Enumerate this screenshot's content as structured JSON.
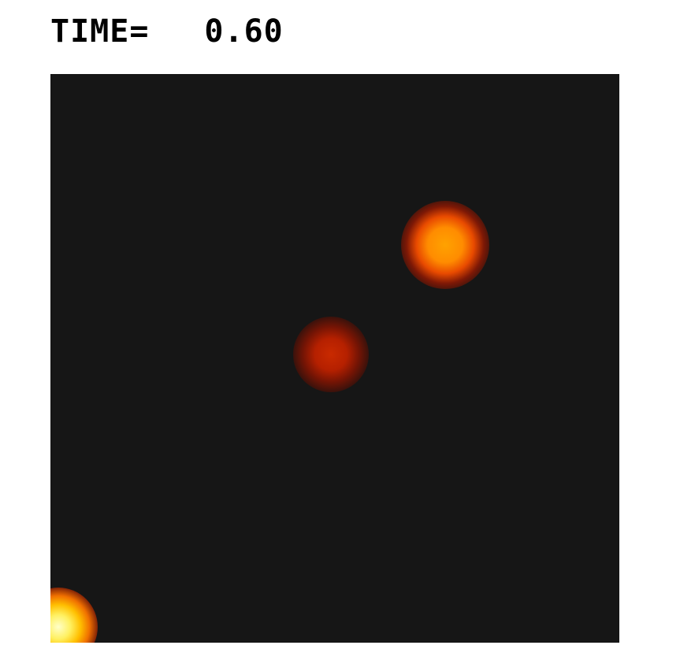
{
  "header": {
    "time_label": "TIME=",
    "time_value": "0.60"
  },
  "colors": {
    "background": "#161616",
    "hot_core": "#ffffc8",
    "orange": "#ff8c00",
    "red": "#c92a00"
  }
}
